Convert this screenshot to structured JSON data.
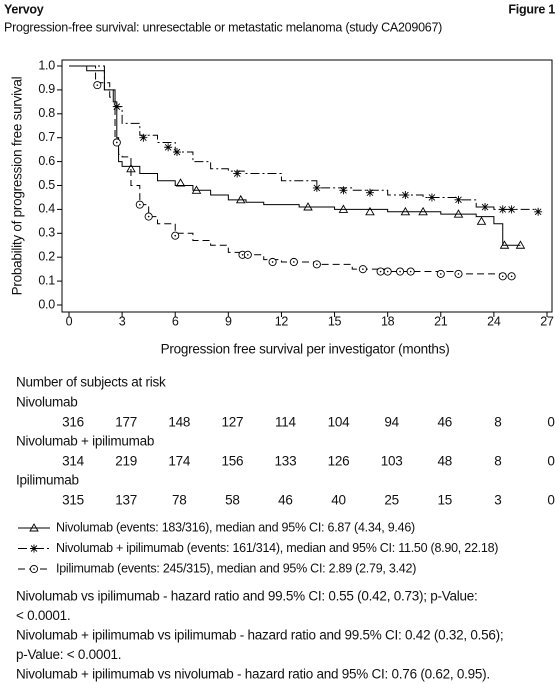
{
  "header": {
    "left": "Yervoy",
    "right": "Figure 1"
  },
  "chart_data": {
    "type": "km",
    "title": "Progression-free survival: unresectable or metastatic melanoma (study CA209067)",
    "x_label": "Progression free survival per investigator (months)",
    "y_label": "Probability of progression free survival",
    "xlim": [
      0,
      27
    ],
    "xticks": [
      0,
      3,
      6,
      9,
      12,
      15,
      18,
      21,
      24,
      27
    ],
    "ylim": [
      0,
      1
    ],
    "yticks": [
      {
        "value": 0,
        "label": "0.0"
      },
      0.1,
      0.2,
      0.3,
      0.4,
      0.5,
      0.6,
      0.7,
      0.8,
      0.9,
      {
        "value": 1,
        "label": "1.0"
      }
    ],
    "series": [
      {
        "name": "Nivolumab (events: 183/316), median and 95% CI: 6.87 (4.34, 9.46)",
        "color": "#000000",
        "dash": "solid",
        "marker": "triangle",
        "x": [
          0,
          1,
          2,
          2.5,
          2.7,
          2.8,
          3,
          4,
          5,
          6,
          7,
          8,
          9,
          10,
          11,
          13,
          15,
          18,
          21,
          23,
          24,
          24.5,
          25.5
        ],
        "values": [
          1,
          0.98,
          0.9,
          0.85,
          0.7,
          0.6,
          0.58,
          0.55,
          0.52,
          0.5,
          0.48,
          0.46,
          0.44,
          0.43,
          0.42,
          0.41,
          0.4,
          0.39,
          0.38,
          0.37,
          0.34,
          0.25,
          0.25
        ],
        "censor_x": [
          3.5,
          6.3,
          7.2,
          9.7,
          13.5,
          15.5,
          17,
          19,
          20,
          22,
          23.3,
          24.6,
          25.5
        ],
        "censor_values": [
          0.57,
          0.51,
          0.48,
          0.44,
          0.41,
          0.4,
          0.39,
          0.39,
          0.39,
          0.38,
          0.35,
          0.25,
          0.25
        ]
      },
      {
        "name": "Nivolumab + ipilimumab (events: 161/314), median and 95% CI: 11.50 (8.90, 22.18)",
        "color": "#000000",
        "dash": "dashdot",
        "marker": "star",
        "x": [
          0,
          2,
          2.6,
          3,
          4,
          5,
          6,
          7,
          8,
          9,
          10,
          12,
          14,
          16,
          18,
          20,
          22,
          23,
          24,
          26.5
        ],
        "values": [
          1,
          0.9,
          0.83,
          0.76,
          0.71,
          0.68,
          0.64,
          0.6,
          0.57,
          0.56,
          0.55,
          0.52,
          0.49,
          0.48,
          0.46,
          0.45,
          0.44,
          0.41,
          0.4,
          0.39
        ],
        "censor_x": [
          2.7,
          4.2,
          5.6,
          6.1,
          9.5,
          14,
          15.5,
          17,
          19,
          20.5,
          22,
          23.5,
          24.5,
          25,
          26.5
        ],
        "censor_values": [
          0.83,
          0.7,
          0.66,
          0.64,
          0.55,
          0.49,
          0.48,
          0.47,
          0.46,
          0.45,
          0.44,
          0.41,
          0.4,
          0.4,
          0.39
        ]
      },
      {
        "name": "Ipilimumab (events: 245/315), median and 95% CI: 2.89 (2.79, 3.42)",
        "color": "#000000",
        "dash": "dashed",
        "marker": "circle",
        "x": [
          0,
          1.5,
          2.3,
          2.6,
          2.8,
          3,
          3.5,
          4,
          4.5,
          5,
          6,
          7,
          8,
          9,
          10,
          11,
          12,
          14,
          16,
          18,
          20,
          22,
          25
        ],
        "values": [
          1,
          0.93,
          0.87,
          0.7,
          0.63,
          0.62,
          0.5,
          0.42,
          0.37,
          0.34,
          0.3,
          0.27,
          0.25,
          0.22,
          0.21,
          0.19,
          0.18,
          0.17,
          0.15,
          0.14,
          0.14,
          0.13,
          0.13
        ],
        "censor_x": [
          1.6,
          2.7,
          4,
          4.5,
          6,
          9.8,
          10.1,
          11.5,
          12.7,
          14,
          16.6,
          17.6,
          18,
          18.7,
          19.3,
          21,
          22,
          24.5,
          25
        ],
        "censor_values": [
          0.92,
          0.68,
          0.42,
          0.37,
          0.29,
          0.21,
          0.21,
          0.18,
          0.18,
          0.17,
          0.15,
          0.14,
          0.14,
          0.14,
          0.14,
          0.13,
          0.13,
          0.12,
          0.12
        ]
      }
    ]
  },
  "at_risk": {
    "title": "Number of subjects at risk",
    "groups": [
      {
        "name": "Nivolumab",
        "counts": [
          "316",
          "177",
          "148",
          "127",
          "114",
          "104",
          "94",
          "46",
          "8",
          "0"
        ]
      },
      {
        "name": "Nivolumab + ipilimumab",
        "counts": [
          "314",
          "219",
          "174",
          "156",
          "133",
          "126",
          "103",
          "48",
          "8",
          "0"
        ]
      },
      {
        "name": "Ipilimumab",
        "counts": [
          "315",
          "137",
          "78",
          "58",
          "46",
          "40",
          "25",
          "15",
          "3",
          "0"
        ]
      }
    ]
  },
  "notes": [
    "Nivolumab vs ipilimumab - hazard ratio and 99.5% CI: 0.55 (0.42, 0.73); p-Value:",
    "< 0.0001.",
    "Nivolumab + ipilimumab vs ipilimumab - hazard ratio and 99.5% CI: 0.42 (0.32, 0.56);",
    "p-Value: < 0.0001.",
    "Nivolumab + ipilimumab vs nivolumab - hazard ratio and 95% CI: 0.76 (0.62, 0.95)."
  ]
}
